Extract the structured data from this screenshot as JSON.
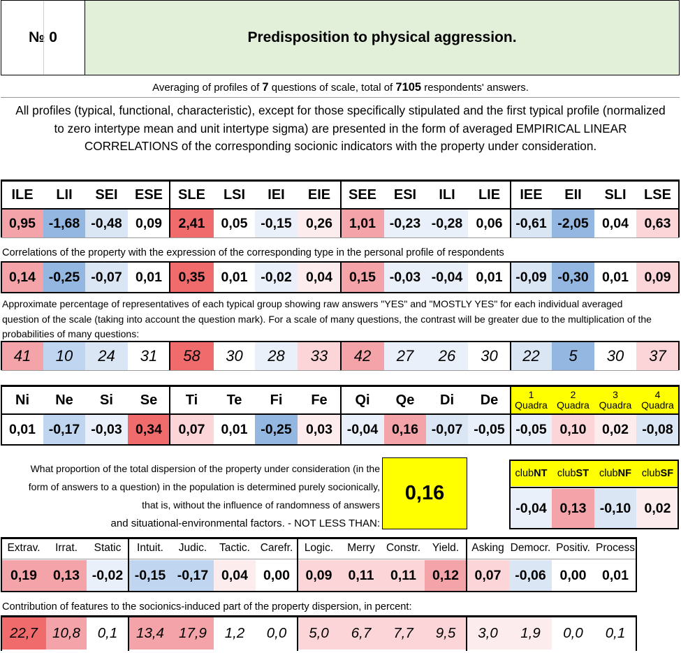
{
  "header": {
    "number_label": "№ 0",
    "title": "Predisposition to physical aggression."
  },
  "averaging": {
    "prefix": "Averaging of profiles of ",
    "questions": "7",
    "middle": " questions of scale, total of ",
    "respondents": "7105",
    "suffix": " respondents' answers."
  },
  "description": "All profiles (typical, functional, characteristic), except for those specifically stipulated and the first typical profile (normalized to zero intertype mean and unit intertype sigma) are presented in the form of averaged EMPIRICAL LINEAR CORRELATIONS of the corresponding socionic indicators with the property under consideration.",
  "types": {
    "labels": [
      "ILE",
      "LII",
      "SEI",
      "ESE",
      "SLE",
      "LSI",
      "IEI",
      "EIE",
      "SEE",
      "ESI",
      "ILI",
      "LIE",
      "IEE",
      "EII",
      "SLI",
      "LSE"
    ],
    "typical_profile": [
      "0,95",
      "-1,68",
      "-0,48",
      "0,09",
      "2,41",
      "0,05",
      "-0,15",
      "0,26",
      "1,01",
      "-0,23",
      "-0,28",
      "0,06",
      "-0,61",
      "-2,05",
      "0,04",
      "0,63"
    ],
    "correlations_note": "Correlations of the property with the expression of the corresponding type in the personal profile of respondents",
    "correlations": [
      "0,14",
      "-0,25",
      "-0,07",
      "0,01",
      "0,35",
      "0,01",
      "-0,02",
      "0,04",
      "0,15",
      "-0,03",
      "-0,04",
      "0,01",
      "-0,09",
      "-0,30",
      "0,01",
      "0,09"
    ],
    "percentage_note": "Approximate percentage of representatives of each typical group showing raw answers \"YES\" and \"MOSTLY YES\" for each individual averaged question of the scale (taking into account the question mark). For a scale of many questions, the contrast will be greater due to the multiplication of the probabilities of many questions:",
    "percentages": [
      "41",
      "10",
      "24",
      "31",
      "58",
      "30",
      "28",
      "33",
      "42",
      "27",
      "26",
      "30",
      "22",
      "5",
      "30",
      "37"
    ]
  },
  "functions": {
    "labels": [
      "Ni",
      "Ne",
      "Si",
      "Se",
      "Ti",
      "Te",
      "Fi",
      "Fe",
      "Qi",
      "Qe",
      "Di",
      "De"
    ],
    "values": [
      "0,01",
      "-0,17",
      "-0,03",
      "0,34",
      "0,07",
      "0,01",
      "-0,25",
      "0,03",
      "-0,04",
      "0,16",
      "-0,07",
      "-0,05"
    ],
    "quadra_labels": [
      [
        "1",
        "Quadra"
      ],
      [
        "2",
        "Quadra"
      ],
      [
        "3",
        "Quadra"
      ],
      [
        "4",
        "Quadra"
      ]
    ],
    "quadra_values": [
      "-0,05",
      "0,10",
      "0,02",
      "-0,08"
    ]
  },
  "dispersion": {
    "text": "What proportion of the total dispersion of the property under consideration (in the form of answers to a question) in the population is determined purely socionically, that is, without the influence of randomness of answers",
    "text_last": "and situational-environmental factors. - NOT LESS THAN:",
    "value": "0,16"
  },
  "clubs": {
    "prefix": "club",
    "labels": [
      "NT",
      "ST",
      "NF",
      "SF"
    ],
    "values": [
      "-0,04",
      "0,13",
      "-0,10",
      "0,02"
    ]
  },
  "traits": {
    "labels": [
      "Extrav.",
      "Irrat.",
      "Static",
      "Intuit.",
      "Judic.",
      "Tactic.",
      "Carefr.",
      "Logic.",
      "Merry",
      "Constr.",
      "Yield.",
      "Asking",
      "Democr.",
      "Positiv.",
      "Process"
    ],
    "values": [
      "0,19",
      "0,13",
      "-0,02",
      "-0,15",
      "-0,17",
      "0,04",
      "0,00",
      "0,09",
      "0,11",
      "0,11",
      "0,12",
      "0,07",
      "-0,06",
      "0,00",
      "0,01"
    ],
    "contribution_note": "Contribution of features to the socionics-induced part of the property dispersion, in percent:",
    "contributions": [
      "22,7",
      "10,8",
      "0,1",
      "13,4",
      "17,9",
      "1,2",
      "0,0",
      "5,0",
      "6,7",
      "7,7",
      "9,5",
      "3,0",
      "1,9",
      "0,0",
      "0,1"
    ]
  },
  "colors": {
    "title_bg": "#e2efd9",
    "quadra_bg": "#ffff00",
    "strong_red": "#f06b6b",
    "red": "#f4a4a8",
    "light_red": "#fbd5d7",
    "pale_red": "#fdeced",
    "strong_blue": "#93b7e0",
    "blue": "#c0d5ef",
    "light_blue": "#dbe6f5",
    "pale_blue": "#eaf0fa"
  }
}
